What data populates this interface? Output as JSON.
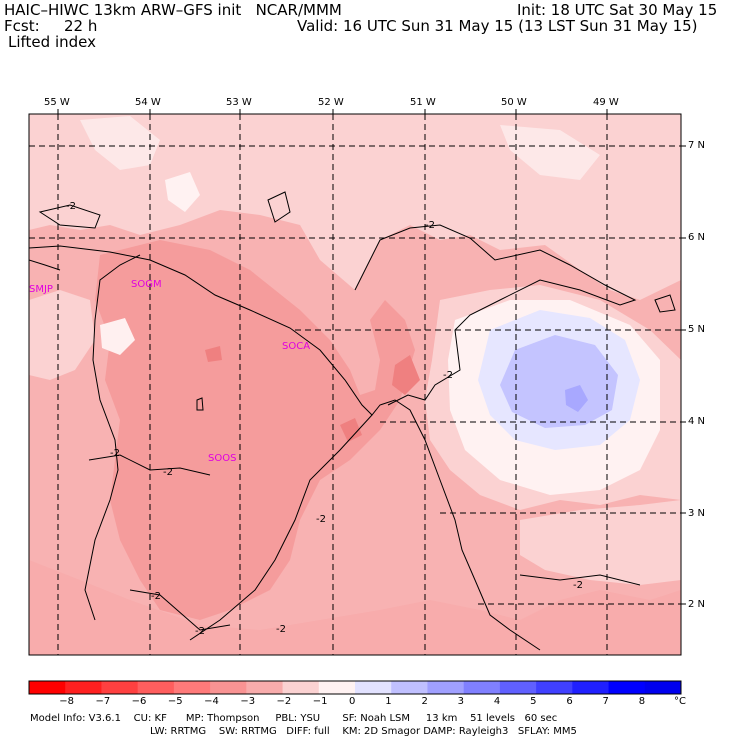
{
  "header": {
    "title_left": "HAIC–HIWC 13km ARW–GFS init   NCAR/MMM",
    "fcst_label": "Fcst:",
    "fcst_value": "22 h",
    "init": "Init: 18 UTC Sat 30 May 15",
    "valid": "Valid: 16 UTC Sun 31 May 15 (13 LST Sun 31 May 15)",
    "field": "Lifted index"
  },
  "axes": {
    "lon_labels": [
      "55 W",
      "54 W",
      "53 W",
      "52 W",
      "51 W",
      "50 W",
      "49 W"
    ],
    "lat_labels": [
      "7 N",
      "6 N",
      "5 N",
      "4 N",
      "3 N",
      "2 N"
    ]
  },
  "stations": [
    {
      "id": "SMJP"
    },
    {
      "id": "SOGM"
    },
    {
      "id": "SOCA"
    },
    {
      "id": "SOOS"
    }
  ],
  "contour_labels": [
    "-2",
    "-2",
    "-2",
    "-2",
    "-2",
    "-2",
    "-2",
    "-2",
    "-2",
    "-2"
  ],
  "colorbar": {
    "ticks": [
      "−8",
      "−7",
      "−6",
      "−5",
      "−4",
      "−3",
      "−2",
      "−1",
      "0",
      "1",
      "2",
      "3",
      "4",
      "5",
      "6",
      "7",
      "8"
    ],
    "unit": "°C",
    "colors": [
      "#ff0000",
      "#ff2020",
      "#ff4040",
      "#ff5e5e",
      "#ff7a7a",
      "#f99393",
      "#f8acac",
      "#fbd2d2",
      "#fff2f2",
      "#e2e2ff",
      "#c0c0ff",
      "#a0a0ff",
      "#8080ff",
      "#6060ff",
      "#4040ff",
      "#2020ff",
      "#0000ff"
    ]
  },
  "model_info": {
    "line1": "Model Info: V3.6.1    CU: KF      MP: Thompson     PBL: YSU       SF: Noah LSM     13 km    51 levels   60 sec",
    "line2": "LW: RRTMG    SW: RRTMG   DIFF: full    KM: 2D Smagor DAMP: Rayleigh3   SFLAY: MM5"
  }
}
